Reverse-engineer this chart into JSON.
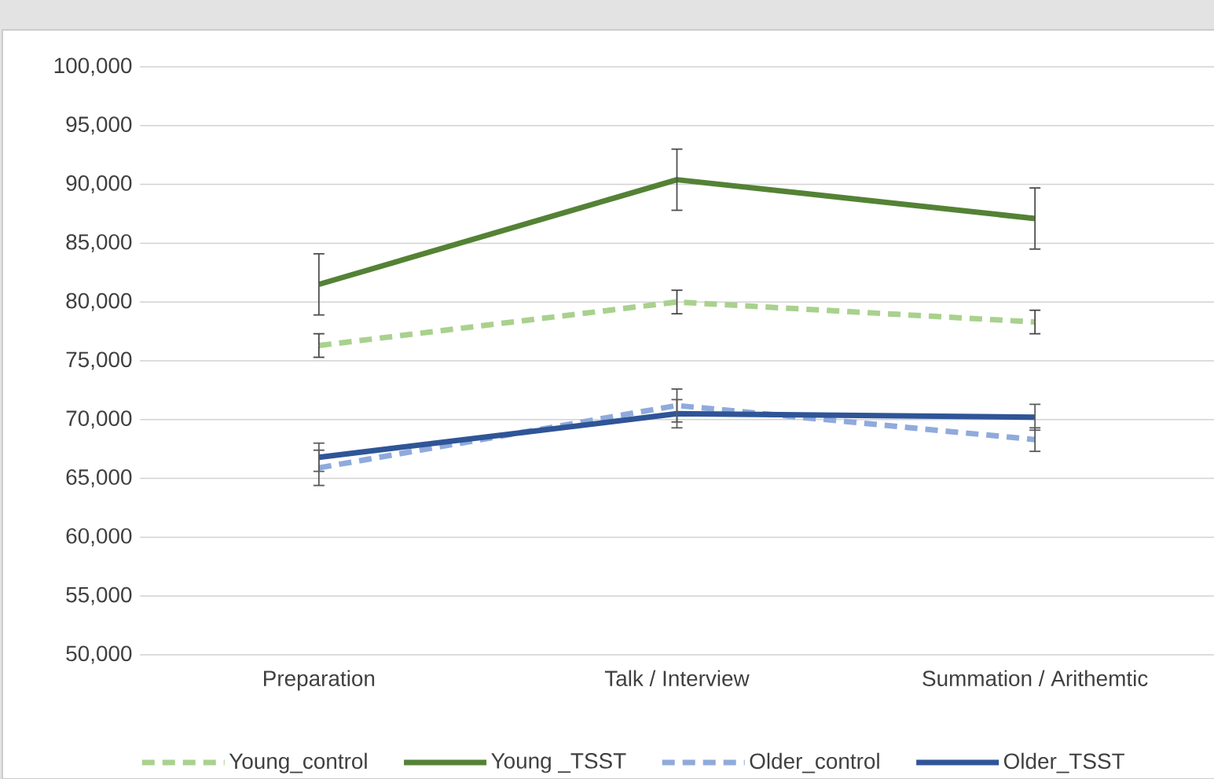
{
  "chart_data": {
    "type": "line",
    "categories": [
      "Preparation",
      "Talk / Interview",
      "Summation / Arithemtic"
    ],
    "series": [
      {
        "name": "Young_control",
        "color": "#a9d18e",
        "line_style": "dashed",
        "values": [
          76300,
          80000,
          78300
        ],
        "errors": [
          1000,
          1000,
          1000
        ]
      },
      {
        "name": "Young _TSST",
        "color": "#548235",
        "line_style": "solid",
        "values": [
          81500,
          90400,
          87100
        ],
        "errors": [
          2600,
          2600,
          2600
        ]
      },
      {
        "name": "Older_control",
        "color": "#8faadc",
        "line_style": "dashed",
        "values": [
          65900,
          71200,
          68300
        ],
        "errors": [
          1500,
          1400,
          1000
        ]
      },
      {
        "name": "Older_TSST",
        "color": "#2f5597",
        "line_style": "solid",
        "values": [
          66800,
          70500,
          70200
        ],
        "errors": [
          1200,
          1200,
          1100
        ]
      }
    ],
    "ylim": [
      50000,
      100000
    ],
    "yticks": [
      {
        "value": 50000,
        "label": "50,000"
      },
      {
        "value": 55000,
        "label": "55,000"
      },
      {
        "value": 60000,
        "label": "60,000"
      },
      {
        "value": 65000,
        "label": "65,000"
      },
      {
        "value": 70000,
        "label": "70,000"
      },
      {
        "value": 75000,
        "label": "75,000"
      },
      {
        "value": 80000,
        "label": "80,000"
      },
      {
        "value": 85000,
        "label": "85,000"
      },
      {
        "value": 90000,
        "label": "90,000"
      },
      {
        "value": 95000,
        "label": "95,000"
      },
      {
        "value": 100000,
        "label": "100,000"
      }
    ],
    "grid": "y",
    "legend": "bottom"
  }
}
